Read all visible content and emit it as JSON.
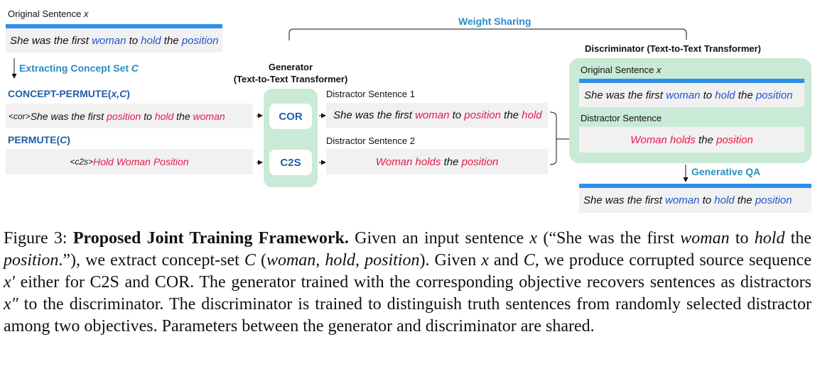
{
  "original": {
    "label": "Original Sentence",
    "var": "x",
    "words": [
      {
        "t": "She was the first ",
        "c": ""
      },
      {
        "t": "woman",
        "c": "b"
      },
      {
        "t": " to ",
        "c": ""
      },
      {
        "t": "hold",
        "c": "b"
      },
      {
        "t": " the ",
        "c": ""
      },
      {
        "t": "position",
        "c": "b"
      }
    ]
  },
  "extract": {
    "label": "Extracting Concept Set",
    "var": "C"
  },
  "concept_permute": {
    "label": "CONCEPT-PERMUTE(",
    "args": "x,C",
    "close": ")"
  },
  "permute": {
    "label": "PERMUTE(",
    "args": "C",
    "close": ")"
  },
  "cor_input": {
    "tag": "<cor>",
    "words": [
      {
        "t": " She was the first ",
        "c": ""
      },
      {
        "t": "position",
        "c": "r"
      },
      {
        "t": " to ",
        "c": ""
      },
      {
        "t": "hold",
        "c": "r"
      },
      {
        "t": " the ",
        "c": ""
      },
      {
        "t": "woman",
        "c": "r"
      }
    ]
  },
  "c2s_input": {
    "tag": "<c2s>",
    "text": " Hold Woman Position"
  },
  "generator": {
    "title": "Generator",
    "subtitle": "(Text-to-Text Transformer)",
    "cor": "COR",
    "c2s": "C2S"
  },
  "weight_sharing": "Weight Sharing",
  "distractor1": {
    "label": "Distractor Sentence 1",
    "words": [
      {
        "t": "She was the first ",
        "c": ""
      },
      {
        "t": "woman",
        "c": "r"
      },
      {
        "t": " to ",
        "c": ""
      },
      {
        "t": "position",
        "c": "r"
      },
      {
        "t": " the ",
        "c": ""
      },
      {
        "t": "hold",
        "c": "r"
      }
    ]
  },
  "distractor2": {
    "label": "Distractor Sentence 2",
    "words": [
      {
        "t": "Woman holds",
        "c": "r"
      },
      {
        "t": " the ",
        "c": ""
      },
      {
        "t": "position",
        "c": "r"
      }
    ]
  },
  "discriminator": {
    "title": "Discriminator (Text-to-Text Transformer)",
    "orig_label": "Original Sentence",
    "orig_var": "x",
    "orig_words": [
      {
        "t": "She was the first ",
        "c": ""
      },
      {
        "t": "woman",
        "c": "b"
      },
      {
        "t": " to ",
        "c": ""
      },
      {
        "t": "hold",
        "c": "b"
      },
      {
        "t": " the ",
        "c": ""
      },
      {
        "t": "position",
        "c": "b"
      }
    ],
    "distractor_label": "Distractor Sentence",
    "distractor_words": [
      {
        "t": "Woman holds",
        "c": "r"
      },
      {
        "t": " the ",
        "c": ""
      },
      {
        "t": "position",
        "c": "r"
      }
    ]
  },
  "generative_qa": {
    "label": "Generative QA",
    "words": [
      {
        "t": "She was the first ",
        "c": ""
      },
      {
        "t": "woman",
        "c": "b"
      },
      {
        "t": " to ",
        "c": ""
      },
      {
        "t": "hold",
        "c": "b"
      },
      {
        "t": " the ",
        "c": ""
      },
      {
        "t": "position",
        "c": "b"
      }
    ]
  },
  "caption": {
    "fig": "Figure 3: ",
    "title": "Proposed Joint Training Framework.",
    "s1": " Given an input sentence ",
    "x": "x",
    "s2": " (“She was the first ",
    "w1": "woman",
    "s3": " to ",
    "w2": "hold",
    "s4": " the ",
    "w3": "position",
    "s5": ".”), we extract concept-set ",
    "C": "C",
    "s6": " (",
    "c1": "woman, hold, position",
    "s7": "). Given ",
    "x2": "x",
    "s8": " and ",
    "C2": "C",
    "s9": ", we produce corrupted source sequence ",
    "xp": "x′",
    "s10": " either for C2S and COR. The generator trained with the corresponding objective recovers sentences as distractors ",
    "xpp": "x″",
    "s11": " to the discriminator. The discriminator is trained to distinguish truth sentences from randomly selected distractor among two objectives. Parameters between the generator and discriminator are shared."
  },
  "colors": {
    "blue_word": "#2255cc",
    "red_word": "#e8194d",
    "bar": "#2f8fea",
    "green": "#c9ead6",
    "heading_blue": "#2a8cc4"
  }
}
